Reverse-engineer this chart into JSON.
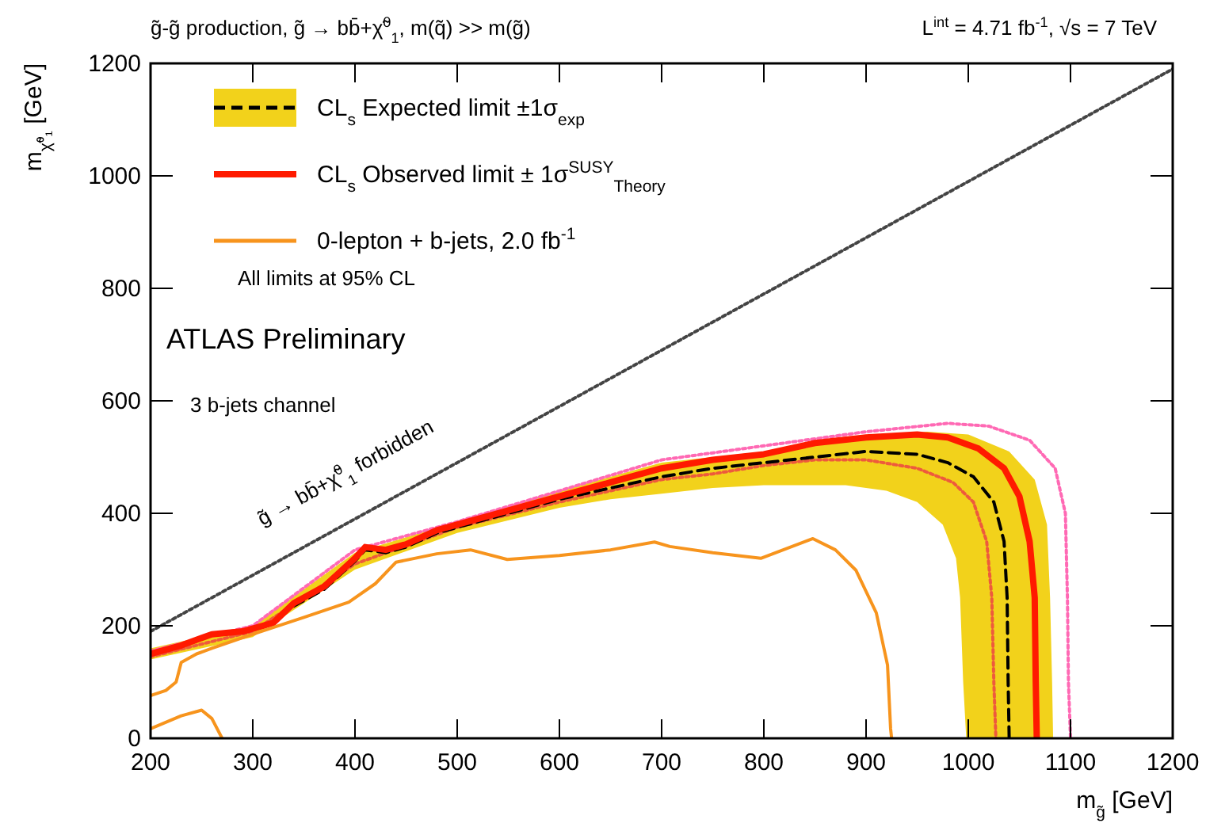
{
  "chart_data": {
    "type": "line",
    "title": "g̃-g̃ production, g̃ → bb̄+χ̃$^{0}$$_{1}$, m(q̃) >> m(g̃)",
    "subtitle": "L$^{int}$ = 4.71 fb$^{-1}$, √s = 7 TeV",
    "xlabel": "m$_{g̃}$ [GeV]",
    "ylabel": "m$_{χ̃⁰₁}$ [GeV]",
    "xlim": [
      200,
      1200
    ],
    "ylim": [
      0,
      1200
    ],
    "xticks": [
      200,
      300,
      400,
      500,
      600,
      700,
      800,
      900,
      1000,
      1100,
      1200
    ],
    "yticks": [
      0,
      200,
      400,
      600,
      800,
      1000,
      1200
    ],
    "grid": false,
    "legend": "top left",
    "annotations": [
      "All limits at 95% CL",
      "ATLAS Preliminary",
      "3 b-jets channel",
      "g̃ → bb̄+χ̃$^{0}$$_{1}$ forbidden"
    ],
    "series": [
      {
        "type": "area",
        "color": "#f2d21b",
        "x": [
          200,
          300,
          400,
          500,
          600,
          650,
          700,
          800,
          900,
          960,
          1000,
          1040,
          1065,
          1077,
          1080,
          1082,
          1083,
          998,
          995,
          992,
          988,
          975,
          950,
          920,
          880,
          800,
          750,
          700,
          650,
          600,
          500,
          400,
          300,
          200
        ],
        "values": [
          160,
          200,
          330,
          385,
          440,
          465,
          490,
          510,
          535,
          545,
          540,
          510,
          460,
          380,
          250,
          100,
          0,
          0,
          100,
          250,
          320,
          380,
          420,
          440,
          450,
          450,
          445,
          435,
          425,
          410,
          365,
          300,
          180,
          140
        ]
      },
      {
        "color": "#ff69b4",
        "line_style": "dotted",
        "x": [
          200,
          300,
          400,
          500,
          600,
          700,
          800,
          900,
          980,
          1020,
          1060,
          1085,
          1095,
          1097,
          1098,
          1100
        ],
        "values": [
          155,
          200,
          335,
          385,
          440,
          495,
          520,
          545,
          560,
          555,
          530,
          480,
          400,
          250,
          100,
          0
        ]
      },
      {
        "color": "#ee5a3c",
        "line_style": "dotted",
        "x": [
          200,
          300,
          400,
          500,
          600,
          700,
          750,
          800,
          850,
          900,
          950,
          985,
          1005,
          1018,
          1023,
          1025,
          1027
        ],
        "values": [
          145,
          190,
          310,
          375,
          420,
          460,
          470,
          485,
          495,
          495,
          480,
          455,
          420,
          350,
          250,
          100,
          0
        ]
      },
      {
        "name": "CL$_{s}$ Expected limit ±1σ$_{exp}$",
        "color": "#000000",
        "line_style": "dashed",
        "x": [
          340,
          370,
          400,
          410,
          430,
          450,
          480,
          520,
          560,
          600,
          650,
          700,
          750,
          800,
          850,
          900,
          950,
          980,
          1005,
          1025,
          1035,
          1038,
          1039,
          1040
        ],
        "values": [
          235,
          265,
          315,
          335,
          330,
          340,
          365,
          385,
          405,
          425,
          445,
          465,
          480,
          490,
          500,
          510,
          505,
          490,
          465,
          420,
          350,
          250,
          100,
          0
        ]
      },
      {
        "name": "CL$_{s}$ Observed limit ± 1σ$^{SUSY}$$_{Theory}$",
        "color": "#ff1a00",
        "line_style": "solid",
        "x": [
          200,
          230,
          260,
          290,
          320,
          340,
          370,
          400,
          410,
          430,
          450,
          480,
          520,
          560,
          600,
          650,
          700,
          750,
          800,
          850,
          900,
          950,
          980,
          1010,
          1035,
          1050,
          1060,
          1065,
          1066,
          1067
        ],
        "values": [
          150,
          165,
          185,
          190,
          205,
          240,
          270,
          320,
          340,
          335,
          345,
          370,
          390,
          410,
          430,
          455,
          480,
          495,
          505,
          525,
          535,
          540,
          535,
          515,
          480,
          430,
          350,
          250,
          100,
          0
        ]
      },
      {
        "name": "0-lepton + b-jets, 2.0 fb$^{-1}$",
        "color": "#f7941d",
        "line_style": "solid",
        "x": [
          200,
          215,
          225,
          230,
          245,
          260,
          300,
          350,
          394,
          420,
          440,
          480,
          513,
          549,
          600,
          650,
          693,
          708,
          750,
          797,
          848,
          870,
          890,
          910,
          921,
          924,
          925
        ],
        "values": [
          76,
          85,
          100,
          135,
          150,
          160,
          185,
          215,
          242,
          275,
          313,
          328,
          335,
          318,
          325,
          335,
          349,
          341,
          330,
          320,
          355,
          335,
          299,
          223,
          130,
          17,
          0
        ]
      },
      {
        "color": "#f7941d",
        "line_style": "solid",
        "x": [
          200,
          230,
          250,
          260,
          270
        ],
        "values": [
          17,
          40,
          50,
          35,
          0
        ]
      },
      {
        "color": "#444444",
        "line_style": "dotted",
        "x": [
          200,
          1200
        ],
        "values": [
          190,
          1190
        ]
      }
    ]
  }
}
